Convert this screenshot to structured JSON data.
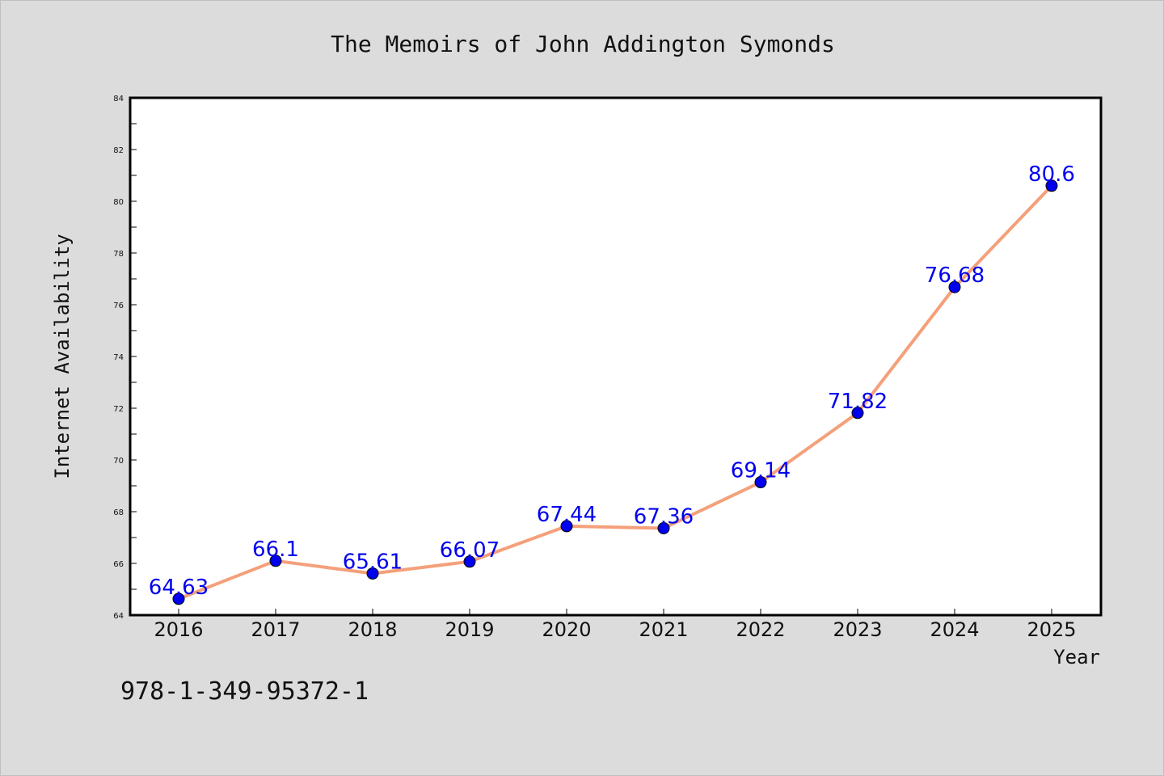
{
  "chart_data": {
    "type": "line",
    "title": "The Memoirs of John Addington Symonds",
    "xlabel": "Year",
    "ylabel": "Internet Availability",
    "x": [
      "2016",
      "2017",
      "2018",
      "2019",
      "2020",
      "2021",
      "2022",
      "2023",
      "2024",
      "2025"
    ],
    "series": [
      {
        "values": [
          64.63,
          66.1,
          65.61,
          66.07,
          67.44,
          67.36,
          69.14,
          71.82,
          76.68,
          80.6
        ],
        "labels": [
          "64.63",
          "66.1",
          "65.61",
          "66.07",
          "67.44",
          "67.36",
          "69.14",
          "71.82",
          "76.68",
          "80.6"
        ],
        "line_color": "#f4a07a",
        "marker_color": "#0000ee"
      }
    ],
    "ylim": [
      64,
      84
    ],
    "yticks": [
      "64",
      "66",
      "68",
      "70",
      "72",
      "74",
      "76",
      "78",
      "80",
      "82",
      "84"
    ],
    "grid": false,
    "legend": "none"
  },
  "annotation": {
    "isbn": "978-1-349-95372-1"
  }
}
